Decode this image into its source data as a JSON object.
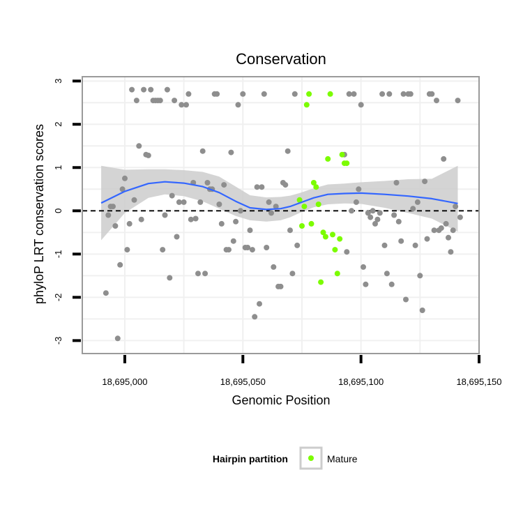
{
  "chart_data": {
    "type": "scatter",
    "title": "Conservation",
    "xlabel": "Genomic Position",
    "ylabel": "phyloP LRT conservation scores",
    "xlim": [
      18694982,
      18695150
    ],
    "ylim": [
      -3.3,
      3.1
    ],
    "x_ticks": [
      18695000,
      18695050,
      18695100,
      18695150
    ],
    "x_tick_labels": [
      "18,695,000",
      "18,695,050",
      "18,695,100",
      "18,695,150"
    ],
    "y_ticks": [
      -3,
      -2,
      -1,
      0,
      1,
      2,
      3
    ],
    "y_tick_labels": [
      "-3",
      "-2",
      "-1",
      "0",
      "1",
      "2",
      "3"
    ],
    "grid": true,
    "reference_line": {
      "y": 0,
      "style": "dashed",
      "color": "#000000"
    },
    "colors": {
      "background": "#ffffff",
      "panel_border": "#9a9a9a",
      "grid": "#f0f0f0",
      "points_other": "#8e8e8e",
      "points_mature": "#7cfc00",
      "smooth_line": "#3366ff",
      "confidence_band": "#cccccc"
    },
    "legend": {
      "title": "Hairpin partition",
      "entries": [
        {
          "label": "Mature",
          "color": "#7cfc00"
        }
      ],
      "position": "bottom"
    },
    "series": [
      {
        "name": "",
        "color": "#8e8e8e",
        "points": [
          [
            18694992,
            -1.9
          ],
          [
            18694993,
            -0.1
          ],
          [
            18694994,
            0.1
          ],
          [
            18694995,
            0.1
          ],
          [
            18694996,
            -0.35
          ],
          [
            18694997,
            -2.95
          ],
          [
            18694998,
            -1.25
          ],
          [
            18694999,
            0.5
          ],
          [
            18695000,
            0.75
          ],
          [
            18695001,
            -0.9
          ],
          [
            18695002,
            -0.3
          ],
          [
            18695003,
            2.8
          ],
          [
            18695004,
            0.25
          ],
          [
            18695005,
            2.55
          ],
          [
            18695006,
            1.5
          ],
          [
            18695007,
            -0.2
          ],
          [
            18695008,
            2.8
          ],
          [
            18695009,
            1.3
          ],
          [
            18695010,
            1.28
          ],
          [
            18695011,
            2.8
          ],
          [
            18695012,
            2.55
          ],
          [
            18695013,
            2.55
          ],
          [
            18695014,
            2.55
          ],
          [
            18695015,
            2.55
          ],
          [
            18695016,
            -0.9
          ],
          [
            18695017,
            -0.1
          ],
          [
            18695018,
            2.8
          ],
          [
            18695019,
            -1.55
          ],
          [
            18695020,
            0.35
          ],
          [
            18695021,
            2.55
          ],
          [
            18695022,
            -0.6
          ],
          [
            18695023,
            0.2
          ],
          [
            18695024,
            2.45
          ],
          [
            18695025,
            0.2
          ],
          [
            18695026,
            2.45
          ],
          [
            18695027,
            2.7
          ],
          [
            18695028,
            -0.2
          ],
          [
            18695029,
            0.65
          ],
          [
            18695030,
            -0.18
          ],
          [
            18695031,
            -1.45
          ],
          [
            18695032,
            0.2
          ],
          [
            18695033,
            1.38
          ],
          [
            18695034,
            -1.45
          ],
          [
            18695035,
            0.65
          ],
          [
            18695036,
            0.5
          ],
          [
            18695037,
            0.5
          ],
          [
            18695038,
            2.7
          ],
          [
            18695039,
            2.7
          ],
          [
            18695040,
            0.15
          ],
          [
            18695041,
            -0.3
          ],
          [
            18695042,
            0.6
          ],
          [
            18695043,
            -0.9
          ],
          [
            18695044,
            -0.9
          ],
          [
            18695045,
            1.35
          ],
          [
            18695046,
            -0.7
          ],
          [
            18695047,
            -0.25
          ],
          [
            18695048,
            2.45
          ],
          [
            18695049,
            0.0
          ],
          [
            18695050,
            2.7
          ],
          [
            18695051,
            -0.85
          ],
          [
            18695052,
            -0.85
          ],
          [
            18695053,
            -0.45
          ],
          [
            18695054,
            -0.9
          ],
          [
            18695055,
            -2.45
          ],
          [
            18695056,
            0.55
          ],
          [
            18695057,
            -2.15
          ],
          [
            18695058,
            0.55
          ],
          [
            18695059,
            2.7
          ],
          [
            18695060,
            -0.85
          ],
          [
            18695061,
            0.2
          ],
          [
            18695062,
            -0.05
          ],
          [
            18695063,
            -1.3
          ],
          [
            18695064,
            0.1
          ],
          [
            18695065,
            -1.75
          ],
          [
            18695066,
            -1.75
          ],
          [
            18695067,
            0.65
          ],
          [
            18695068,
            0.6
          ],
          [
            18695069,
            1.38
          ],
          [
            18695070,
            -0.45
          ],
          [
            18695071,
            -1.45
          ],
          [
            18695072,
            2.7
          ],
          [
            18695073,
            -0.8
          ],
          [
            18695093,
            1.3
          ],
          [
            18695094,
            -0.95
          ],
          [
            18695095,
            2.7
          ],
          [
            18695096,
            0.0
          ],
          [
            18695097,
            2.7
          ],
          [
            18695098,
            0.2
          ],
          [
            18695099,
            0.5
          ],
          [
            18695100,
            2.45
          ],
          [
            18695101,
            -1.3
          ],
          [
            18695102,
            -1.7
          ],
          [
            18695103,
            -0.05
          ],
          [
            18695104,
            -0.15
          ],
          [
            18695105,
            0.0
          ],
          [
            18695106,
            -0.3
          ],
          [
            18695107,
            -0.2
          ],
          [
            18695108,
            -0.05
          ],
          [
            18695109,
            2.7
          ],
          [
            18695110,
            -0.8
          ],
          [
            18695111,
            -1.45
          ],
          [
            18695112,
            2.7
          ],
          [
            18695113,
            -1.7
          ],
          [
            18695114,
            -0.1
          ],
          [
            18695115,
            0.65
          ],
          [
            18695116,
            -0.25
          ],
          [
            18695117,
            -0.7
          ],
          [
            18695118,
            2.7
          ],
          [
            18695119,
            -2.05
          ],
          [
            18695120,
            2.7
          ],
          [
            18695121,
            2.7
          ],
          [
            18695122,
            0.05
          ],
          [
            18695123,
            -0.8
          ],
          [
            18695124,
            0.2
          ],
          [
            18695125,
            -1.5
          ],
          [
            18695126,
            -2.3
          ],
          [
            18695127,
            0.68
          ],
          [
            18695128,
            -0.65
          ],
          [
            18695129,
            2.7
          ],
          [
            18695130,
            2.7
          ],
          [
            18695131,
            -0.45
          ],
          [
            18695132,
            2.55
          ],
          [
            18695133,
            -0.45
          ],
          [
            18695134,
            -0.4
          ],
          [
            18695135,
            1.2
          ],
          [
            18695136,
            -0.3
          ],
          [
            18695137,
            -0.62
          ],
          [
            18695138,
            -0.95
          ],
          [
            18695139,
            -0.45
          ],
          [
            18695140,
            0.1
          ],
          [
            18695141,
            2.55
          ],
          [
            18695142,
            -0.15
          ]
        ]
      },
      {
        "name": "Mature",
        "color": "#7cfc00",
        "points": [
          [
            18695074,
            0.25
          ],
          [
            18695075,
            -0.35
          ],
          [
            18695076,
            0.1
          ],
          [
            18695077,
            2.45
          ],
          [
            18695078,
            2.7
          ],
          [
            18695079,
            -0.3
          ],
          [
            18695080,
            0.65
          ],
          [
            18695081,
            0.55
          ],
          [
            18695082,
            0.15
          ],
          [
            18695083,
            -1.65
          ],
          [
            18695084,
            -0.5
          ],
          [
            18695085,
            -0.6
          ],
          [
            18695086,
            1.2
          ],
          [
            18695087,
            2.7
          ],
          [
            18695088,
            -0.55
          ],
          [
            18695089,
            -0.9
          ],
          [
            18695090,
            -1.45
          ],
          [
            18695091,
            -0.65
          ],
          [
            18695092,
            1.3
          ],
          [
            18695093,
            1.1
          ],
          [
            18695094,
            1.1
          ]
        ]
      }
    ],
    "smooth": {
      "x": [
        18694990,
        18695000,
        18695010,
        18695017,
        18695025,
        18695033,
        18695040,
        18695047,
        18695053,
        18695060,
        18695066,
        18695070,
        18695074,
        18695080,
        18695086,
        18695093,
        18695100,
        18695110,
        18695120,
        18695130,
        18695141
      ],
      "y": [
        0.18,
        0.45,
        0.63,
        0.67,
        0.64,
        0.56,
        0.42,
        0.22,
        0.07,
        0.03,
        0.05,
        0.1,
        0.18,
        0.3,
        0.38,
        0.4,
        0.41,
        0.38,
        0.34,
        0.28,
        0.17
      ],
      "lower": [
        -0.68,
        -0.05,
        0.3,
        0.38,
        0.34,
        0.22,
        0.05,
        -0.12,
        -0.22,
        -0.25,
        -0.22,
        -0.15,
        -0.05,
        0.08,
        0.15,
        0.17,
        0.16,
        0.07,
        -0.05,
        -0.18,
        -0.48
      ],
      "upper": [
        1.04,
        0.95,
        0.96,
        0.96,
        0.94,
        0.9,
        0.79,
        0.56,
        0.36,
        0.31,
        0.32,
        0.35,
        0.41,
        0.52,
        0.61,
        0.63,
        0.66,
        0.69,
        0.73,
        0.74,
        1.04
      ]
    }
  }
}
